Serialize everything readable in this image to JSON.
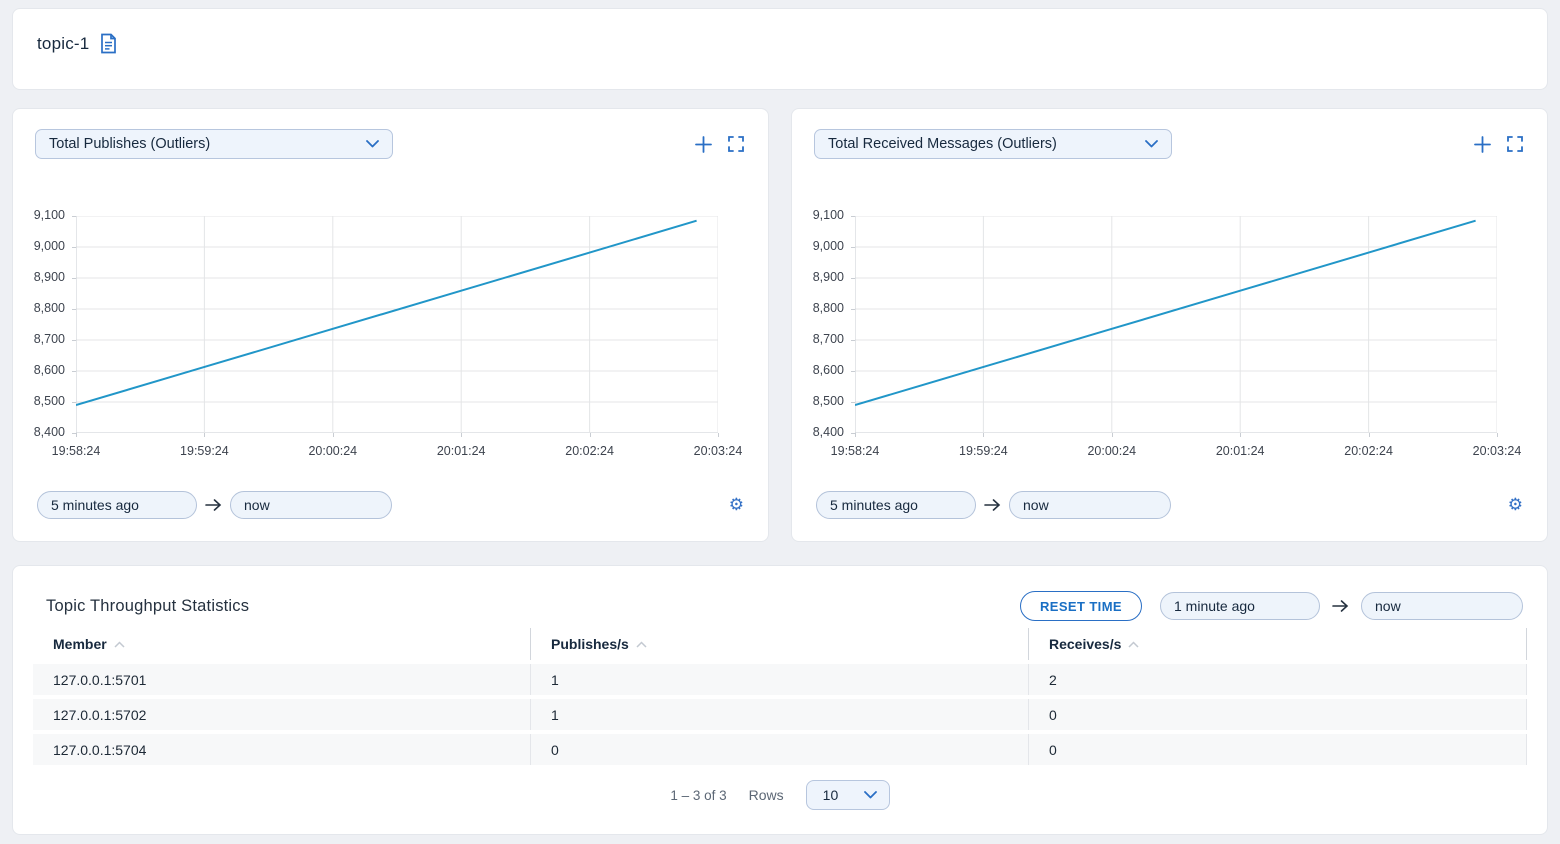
{
  "topbar": {
    "title": "topic-1"
  },
  "charts": [
    {
      "selector_label": "Total Publishes (Outliers)",
      "from": "5 minutes ago",
      "to": "now"
    },
    {
      "selector_label": "Total Received Messages (Outliers)",
      "from": "5 minutes ago",
      "to": "now"
    }
  ],
  "chart_data": [
    {
      "type": "line",
      "title": "Total Publishes (Outliers)",
      "x_tick_labels": [
        "19:58:24",
        "19:59:24",
        "20:00:24",
        "20:01:24",
        "20:02:24",
        "20:03:24"
      ],
      "xlim_seconds": [
        0,
        300
      ],
      "ylim": [
        8400,
        9100
      ],
      "ytick_step": 100,
      "grid": true,
      "legend": "none",
      "line_color": "#2196c8",
      "series": [
        {
          "name": "Total Publishes",
          "points": [
            [
              0,
              8490
            ],
            [
              60,
              8613
            ],
            [
              120,
              8736
            ],
            [
              180,
              8859
            ],
            [
              240,
              8982
            ],
            [
              290,
              9085
            ]
          ]
        }
      ]
    },
    {
      "type": "line",
      "title": "Total Received Messages (Outliers)",
      "x_tick_labels": [
        "19:58:24",
        "19:59:24",
        "20:00:24",
        "20:01:24",
        "20:02:24",
        "20:03:24"
      ],
      "xlim_seconds": [
        0,
        300
      ],
      "ylim": [
        8400,
        9100
      ],
      "ytick_step": 100,
      "grid": true,
      "legend": "none",
      "line_color": "#2196c8",
      "series": [
        {
          "name": "Total Received Messages",
          "points": [
            [
              0,
              8490
            ],
            [
              60,
              8613
            ],
            [
              120,
              8736
            ],
            [
              180,
              8859
            ],
            [
              240,
              8982
            ],
            [
              290,
              9085
            ]
          ]
        }
      ]
    }
  ],
  "table_panel": {
    "title": "Topic Throughput Statistics",
    "reset_button": "RESET TIME",
    "from": "1 minute ago",
    "to": "now",
    "columns": {
      "member": "Member",
      "publishes": "Publishes/s",
      "receives": "Receives/s"
    },
    "rows": [
      {
        "member": "127.0.0.1:5701",
        "publishes": "1",
        "receives": "2"
      },
      {
        "member": "127.0.0.1:5702",
        "publishes": "1",
        "receives": "0"
      },
      {
        "member": "127.0.0.1:5704",
        "publishes": "0",
        "receives": "0"
      }
    ],
    "pagination": {
      "range": "1 – 3 of 3",
      "rows_label": "Rows",
      "page_size": "10"
    }
  },
  "icons": {
    "document": "document-icon",
    "plus": "add-chart-icon",
    "fullscreen": "fullscreen-icon",
    "gear": "settings-gear-icon",
    "chevron": "chevron-down-icon",
    "sort": "sort-caret-icon",
    "arrow": "arrow-right-icon"
  },
  "colors": {
    "accent": "#2a6fc5",
    "line": "#2196c8",
    "page_bg": "#eef0f4",
    "row_bg": "#f7f8f9"
  }
}
